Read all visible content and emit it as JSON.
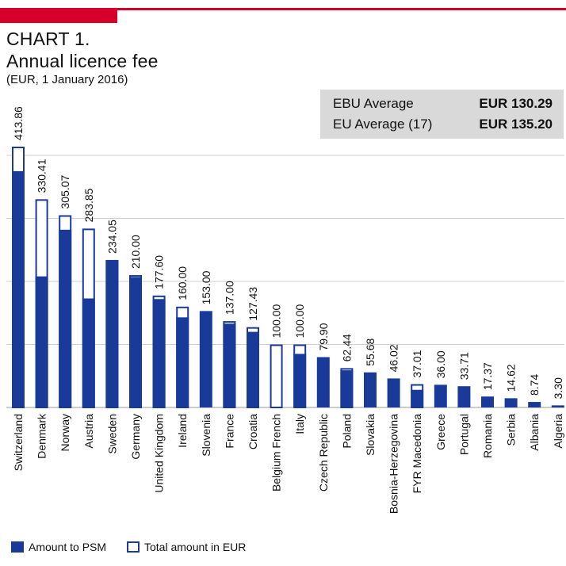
{
  "header": {
    "title_line1": "CHART 1.",
    "title_line2": "Annual licence fee",
    "subtitle": "(EUR, 1 January 2016)"
  },
  "averages": [
    {
      "label": "EBU Average",
      "value": "EUR 130.29"
    },
    {
      "label": "EU Average (17)",
      "value": "EUR 135.20"
    }
  ],
  "legend": {
    "psm": "Amount to PSM",
    "total": "Total amount in EUR"
  },
  "colors": {
    "bar": "#1a3a9a",
    "accent": "#d6002a",
    "grid": "#cfcfcf"
  },
  "chart_data": {
    "type": "bar",
    "ylim": [
      0,
      420
    ],
    "grid": true,
    "legend_position": "bottom-left",
    "categories": [
      "Switzerland",
      "Denmark",
      "Norway",
      "Austria",
      "Sweden",
      "Germany",
      "United Kingdom",
      "Ireland",
      "Slovenia",
      "France",
      "Croatia",
      "Belgium French",
      "Italy",
      "Czech Republic",
      "Poland",
      "Slovakia",
      "Bosnia-Herzegovina",
      "FYR Macedonia",
      "Greece",
      "Portugal",
      "Romania",
      "Serbia",
      "Albania",
      "Algeria"
    ],
    "series": [
      {
        "name": "Total amount in EUR",
        "values": [
          413.86,
          330.41,
          305.07,
          283.85,
          234.05,
          210.0,
          177.6,
          160.0,
          153.0,
          137.0,
          127.43,
          100.0,
          100.0,
          79.9,
          62.44,
          55.68,
          46.02,
          37.01,
          36.0,
          33.71,
          17.37,
          14.62,
          8.74,
          3.3
        ]
      },
      {
        "name": "Amount to PSM",
        "values": [
          375,
          208,
          282,
          173,
          234,
          207,
          172,
          143,
          153,
          133,
          120,
          0,
          85,
          79.9,
          59,
          55.68,
          46.02,
          28,
          36,
          33.71,
          17.37,
          14.62,
          8.74,
          3.3
        ]
      }
    ],
    "value_labels": [
      "413.86",
      "330.41",
      "305.07",
      "283.85",
      "234.05",
      "210.00",
      "177.60",
      "160.00",
      "153.00",
      "137.00",
      "127.43",
      "100.00",
      "100.00",
      "79.90",
      "62.44",
      "55.68",
      "46.02",
      "37.01",
      "36.00",
      "33.71",
      "17.37",
      "14.62",
      "8.74",
      "3.30"
    ]
  }
}
